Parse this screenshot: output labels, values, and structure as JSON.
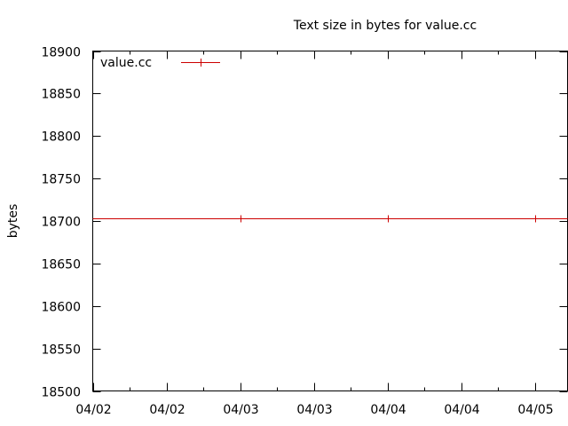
{
  "chart_data": {
    "type": "line",
    "title": "Text size in bytes for value.cc",
    "xlabel": "",
    "ylabel": "bytes",
    "ylim": [
      18500,
      18900
    ],
    "yticks": [
      18500,
      18550,
      18600,
      18650,
      18700,
      18750,
      18800,
      18850,
      18900
    ],
    "xlim": [
      0,
      3.22
    ],
    "xtick_values": [
      0,
      0.5,
      1,
      1.5,
      2,
      2.5,
      3
    ],
    "xtick_labels": [
      "04/02",
      "04/02",
      "04/03",
      "04/03",
      "04/04",
      "04/04",
      "04/05"
    ],
    "legend_position": "top-left",
    "grid": false,
    "series": [
      {
        "name": "value.cc",
        "color": "#cc0000",
        "x": [
          0,
          1,
          2,
          3,
          3.22
        ],
        "y": [
          18703,
          18703,
          18703,
          18703,
          18703
        ]
      }
    ]
  }
}
